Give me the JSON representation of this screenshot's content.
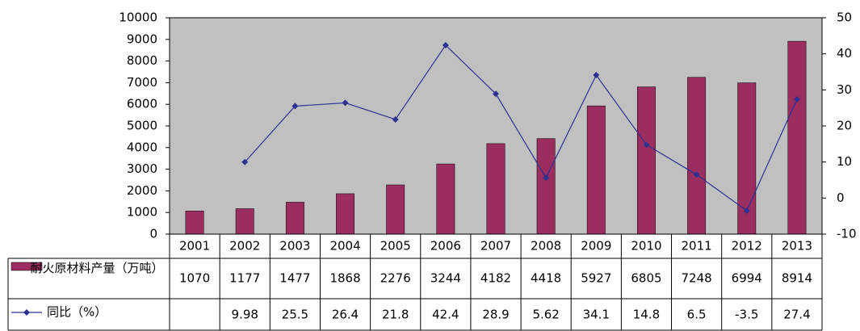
{
  "chart_data": {
    "type": "bar-line",
    "categories": [
      "2001",
      "2002",
      "2003",
      "2004",
      "2005",
      "2006",
      "2007",
      "2008",
      "2009",
      "2010",
      "2011",
      "2012",
      "2013"
    ],
    "series": [
      {
        "name": "耐火原材料产量（万吨）",
        "type": "bar",
        "color": "#9b2d5f",
        "values": [
          1070,
          1177,
          1477,
          1868,
          2276,
          3244,
          4182,
          4418,
          5927,
          6805,
          7248,
          6994,
          8914
        ]
      },
      {
        "name": "同比（%）",
        "type": "line",
        "axis": "y2",
        "color": "#2e3192",
        "values": [
          null,
          9.98,
          25.5,
          26.4,
          21.8,
          42.4,
          28.9,
          5.62,
          34.1,
          14.8,
          6.5,
          -3.5,
          27.4
        ]
      }
    ],
    "ylim": [
      0,
      10000
    ],
    "yticks": [
      0,
      1000,
      2000,
      3000,
      4000,
      5000,
      6000,
      7000,
      8000,
      9000,
      10000
    ],
    "y2lim": [
      -10,
      50
    ],
    "y2ticks": [
      -10,
      0,
      10,
      20,
      30,
      40,
      50
    ],
    "plot_background": "#c0c0c0"
  }
}
